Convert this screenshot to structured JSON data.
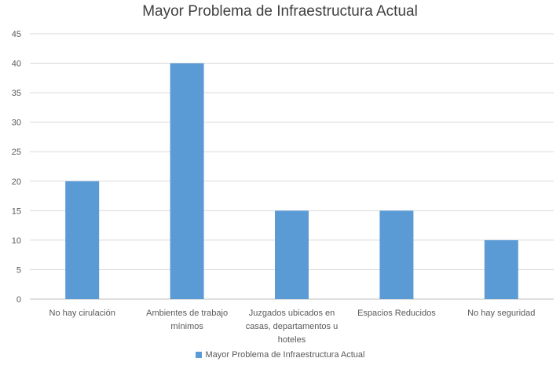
{
  "chart_data": {
    "type": "bar",
    "title": "Mayor Problema de Infraestructura Actual",
    "categories": [
      [
        "No hay cirulación"
      ],
      [
        "Ambientes de trabajo",
        "mínimos"
      ],
      [
        "Juzgados ubicados en",
        "casas, departamentos u",
        "hoteles"
      ],
      [
        "Espacios Reducidos"
      ],
      [
        "No hay seguridad"
      ]
    ],
    "series": [
      {
        "name": "Mayor Problema de Infraestructura Actual",
        "values": [
          20,
          40,
          15,
          15,
          10
        ],
        "color": "#5B9BD5"
      }
    ],
    "xlabel": "",
    "ylabel": "",
    "ylim": [
      0,
      45
    ],
    "yticks": [
      0,
      5,
      10,
      15,
      20,
      25,
      30,
      35,
      40,
      45
    ],
    "grid": true,
    "legend_position": "bottom"
  }
}
